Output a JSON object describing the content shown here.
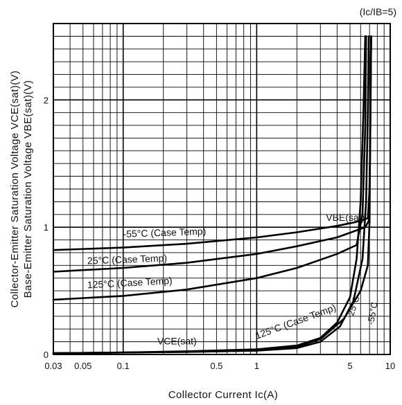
{
  "chart_data": {
    "type": "line",
    "x_scale": "log",
    "xlim": [
      0.03,
      10
    ],
    "ylim": [
      0,
      2.6
    ],
    "xlabel": "Collector Current Ic(A)",
    "ylabel_lines": [
      "Collector-Emitter Saturation Voltage VCE(sat)(V)",
      "Base-Emitter Saturation Voltage VBE(sat)(V)"
    ],
    "condition_note": "(Ic/IB=5)",
    "x_ticks": [
      {
        "value": 0.03,
        "label": "0.03"
      },
      {
        "value": 0.05,
        "label": "0.05"
      },
      {
        "value": 0.1,
        "label": "0.1"
      },
      {
        "value": 0.5,
        "label": "0.5"
      },
      {
        "value": 1,
        "label": "1"
      },
      {
        "value": 5,
        "label": "5"
      },
      {
        "value": 10,
        "label": "10"
      }
    ],
    "y_ticks": [
      {
        "value": 0,
        "label": "0"
      },
      {
        "value": 1,
        "label": "1"
      },
      {
        "value": 2,
        "label": "2"
      }
    ],
    "grid": true,
    "series": [
      {
        "name": "-55°C (Case Temp)",
        "group": "VBE(sat)",
        "x": [
          0.03,
          0.1,
          0.3,
          1,
          2,
          4,
          5.5,
          6.8,
          7.0,
          7.1,
          7.15,
          7.2
        ],
        "y": [
          0.82,
          0.84,
          0.87,
          0.92,
          0.96,
          1.01,
          1.04,
          1.07,
          1.3,
          1.8,
          2.2,
          2.5
        ]
      },
      {
        "name": "25°C (Case Temp)",
        "group": "VBE(sat)",
        "x": [
          0.03,
          0.1,
          0.3,
          1,
          2,
          4,
          6.5,
          6.9,
          7.05,
          7.15,
          7.2
        ],
        "y": [
          0.65,
          0.68,
          0.72,
          0.79,
          0.85,
          0.92,
          1.0,
          1.05,
          1.5,
          2.1,
          2.5
        ]
      },
      {
        "name": "125°C (Case Temp)",
        "group": "VBE(sat)",
        "x": [
          0.03,
          0.1,
          0.3,
          1,
          2,
          4,
          5.6,
          6.2,
          6.5,
          6.6
        ],
        "y": [
          0.43,
          0.46,
          0.51,
          0.6,
          0.68,
          0.79,
          0.86,
          1.1,
          1.8,
          2.5
        ]
      },
      {
        "name": "-55°C",
        "group": "VCE(sat)",
        "x": [
          0.03,
          0.1,
          0.3,
          1,
          2,
          3,
          4.5,
          6,
          6.8,
          7.0,
          7.1,
          7.2
        ],
        "y": [
          0.01,
          0.015,
          0.02,
          0.03,
          0.06,
          0.12,
          0.28,
          0.5,
          0.7,
          1.05,
          1.9,
          2.5
        ]
      },
      {
        "name": "25°C",
        "group": "VCE(sat)",
        "x": [
          0.03,
          0.1,
          0.3,
          1,
          2,
          3,
          4.2,
          5.3,
          6.2,
          6.6,
          6.8,
          6.9
        ],
        "y": [
          0.01,
          0.015,
          0.02,
          0.03,
          0.05,
          0.1,
          0.22,
          0.42,
          0.75,
          1.2,
          1.9,
          2.5
        ]
      },
      {
        "name": "125°C (Case Temp)",
        "group": "VCE(sat)",
        "x": [
          0.03,
          0.1,
          0.3,
          1,
          2,
          3,
          4,
          5,
          5.6,
          6.0,
          6.3,
          6.5
        ],
        "y": [
          0.01,
          0.015,
          0.025,
          0.04,
          0.07,
          0.13,
          0.25,
          0.45,
          0.75,
          1.2,
          1.9,
          2.5
        ]
      }
    ],
    "annotations": [
      {
        "text": "VBE(sat)"
      },
      {
        "text": "VCE(sat)"
      }
    ]
  }
}
